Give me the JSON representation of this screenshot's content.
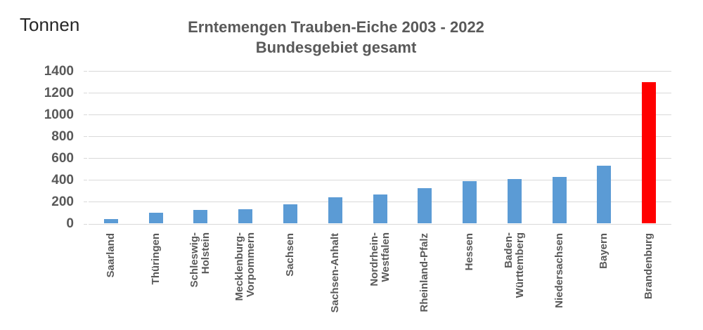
{
  "chart_data": {
    "type": "bar",
    "title": "Erntemengen Trauben-Eiche 2003 - 2022",
    "subtitle": "Bundesgebiet gesamt",
    "unit_label": "Tonnen",
    "categories": [
      "Saarland",
      "Thüringen",
      "Schleswig-\nHolstein",
      "Mecklenburg-\nVorpommern",
      "Sachsen",
      "Sachsen-Anhalt",
      "Nordrhein-\nWestfalen",
      "Rheinland-Pfalz",
      "Hessen",
      "Baden-\nWürttemberg",
      "Niedersachsen",
      "Bayern",
      "Brandenburg"
    ],
    "values": [
      40,
      97,
      124,
      129,
      180,
      240,
      266,
      328,
      390,
      410,
      430,
      528,
      1300
    ],
    "highlight_index": 12,
    "ylim": [
      0,
      1400
    ],
    "yticks": [
      0,
      200,
      400,
      600,
      800,
      1000,
      1200,
      1400
    ],
    "grid": true,
    "legend_position": "none",
    "colors": {
      "default_bar": "#5B9BD5",
      "highlight_bar": "#FF0000",
      "gridline": "#D9D9D9",
      "axis_text": "#595959",
      "title_text": "#595959",
      "unit_text": "#262626"
    }
  }
}
